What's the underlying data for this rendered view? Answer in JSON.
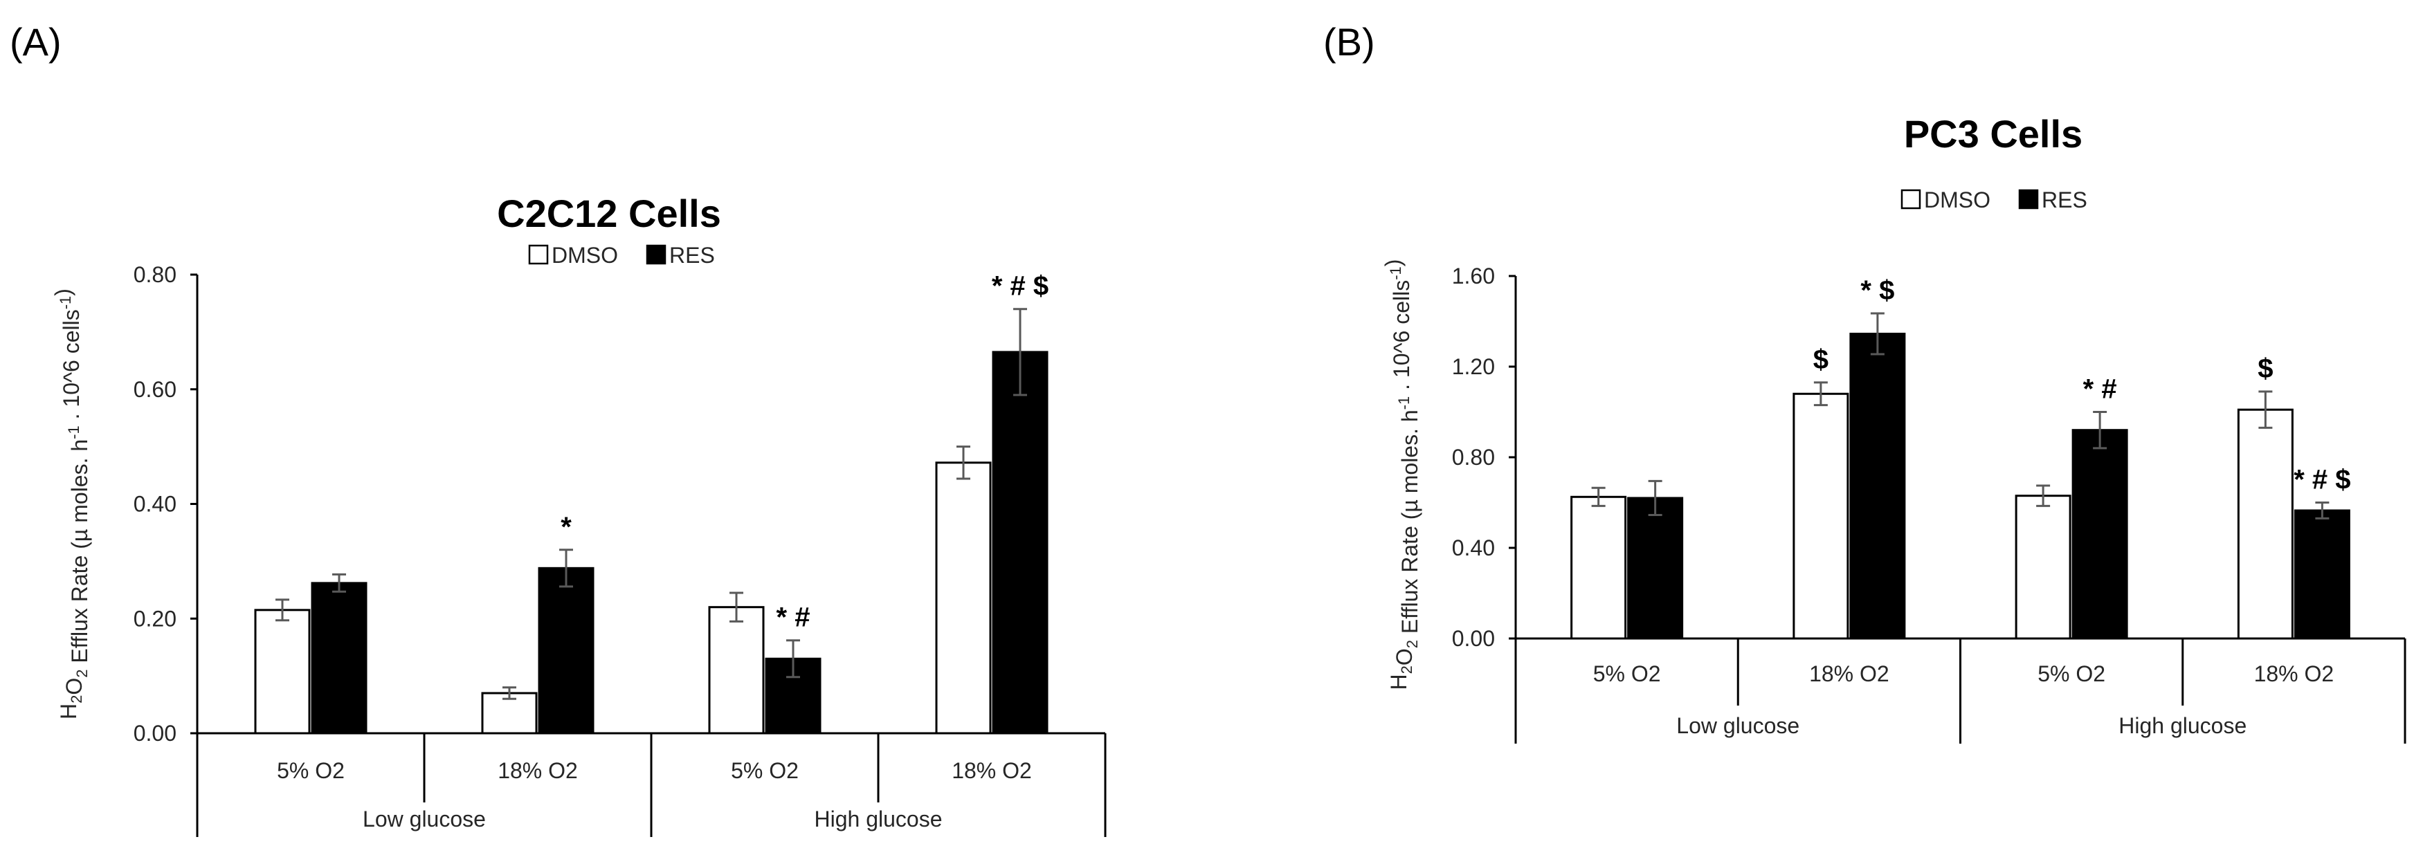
{
  "chart_data": [
    {
      "type": "bar",
      "panel_label": "(A)",
      "title": "C2C12 Cells",
      "ylabel": {
        "prefix": "H",
        "sub": "2",
        "mid": "O",
        "sub2": "2",
        "text": " Efflux Rate  (µ moles. h",
        "sup1": "-1",
        "text2": " . 10^6 cells",
        "sup2": "-1",
        "end": ")"
      },
      "xlabel": "",
      "ylim": [
        0,
        0.8
      ],
      "yticks": [
        "0.00",
        "0.20",
        "0.40",
        "0.60",
        "0.80"
      ],
      "ytick_values": [
        0,
        0.2,
        0.4,
        0.6,
        0.8
      ],
      "legend": [
        "DMSO",
        "RES"
      ],
      "legend_position": "top-center",
      "categories": [
        "5% O2",
        "18% O2",
        "5% O2",
        "18% O2"
      ],
      "groups": [
        "Low glucose",
        "High glucose"
      ],
      "series": [
        {
          "name": "DMSO",
          "color": "#ffffff",
          "values": [
            0.215,
            0.07,
            0.22,
            0.472
          ],
          "errors": [
            0.018,
            0.01,
            0.025,
            0.028
          ]
        },
        {
          "name": "RES",
          "color": "#000000",
          "values": [
            0.262,
            0.288,
            0.13,
            0.665
          ],
          "errors": [
            0.015,
            0.032,
            0.032,
            0.075
          ]
        }
      ],
      "annotations": [
        {
          "category": 1,
          "series": 1,
          "text": "*"
        },
        {
          "category": 2,
          "series": 1,
          "text": "* #"
        },
        {
          "category": 3,
          "series": 1,
          "text": "* # $"
        }
      ]
    },
    {
      "type": "bar",
      "panel_label": "(B)",
      "title": "PC3 Cells",
      "ylabel": {
        "prefix": "H",
        "sub": "2",
        "mid": "O",
        "sub2": "2",
        "text": " Efflux Rate  (µ moles. h",
        "sup1": "-1",
        "text2": " . 10^6 cells",
        "sup2": "-1",
        "end": ")"
      },
      "xlabel": "",
      "ylim": [
        0,
        1.6
      ],
      "yticks": [
        "0.00",
        "0.40",
        "0.80",
        "1.20",
        "1.60"
      ],
      "ytick_values": [
        0,
        0.4,
        0.8,
        1.2,
        1.6
      ],
      "legend": [
        "DMSO",
        "RES"
      ],
      "legend_position": "top-center",
      "categories": [
        "5% O2",
        "18% O2",
        "5% O2",
        "18% O2"
      ],
      "groups": [
        "Low  glucose",
        "High glucose"
      ],
      "series": [
        {
          "name": "DMSO",
          "color": "#ffffff",
          "values": [
            0.625,
            1.08,
            0.63,
            1.01
          ],
          "errors": [
            0.04,
            0.05,
            0.045,
            0.08
          ]
        },
        {
          "name": "RES",
          "color": "#000000",
          "values": [
            0.62,
            1.345,
            0.92,
            0.565
          ],
          "errors": [
            0.075,
            0.09,
            0.08,
            0.035
          ]
        }
      ],
      "annotations": [
        {
          "category": 1,
          "series": 0,
          "text": "$"
        },
        {
          "category": 1,
          "series": 1,
          "text": "* $"
        },
        {
          "category": 2,
          "series": 1,
          "text": "* #"
        },
        {
          "category": 3,
          "series": 0,
          "text": "$"
        },
        {
          "category": 3,
          "series": 1,
          "text": "* # $"
        }
      ]
    }
  ]
}
